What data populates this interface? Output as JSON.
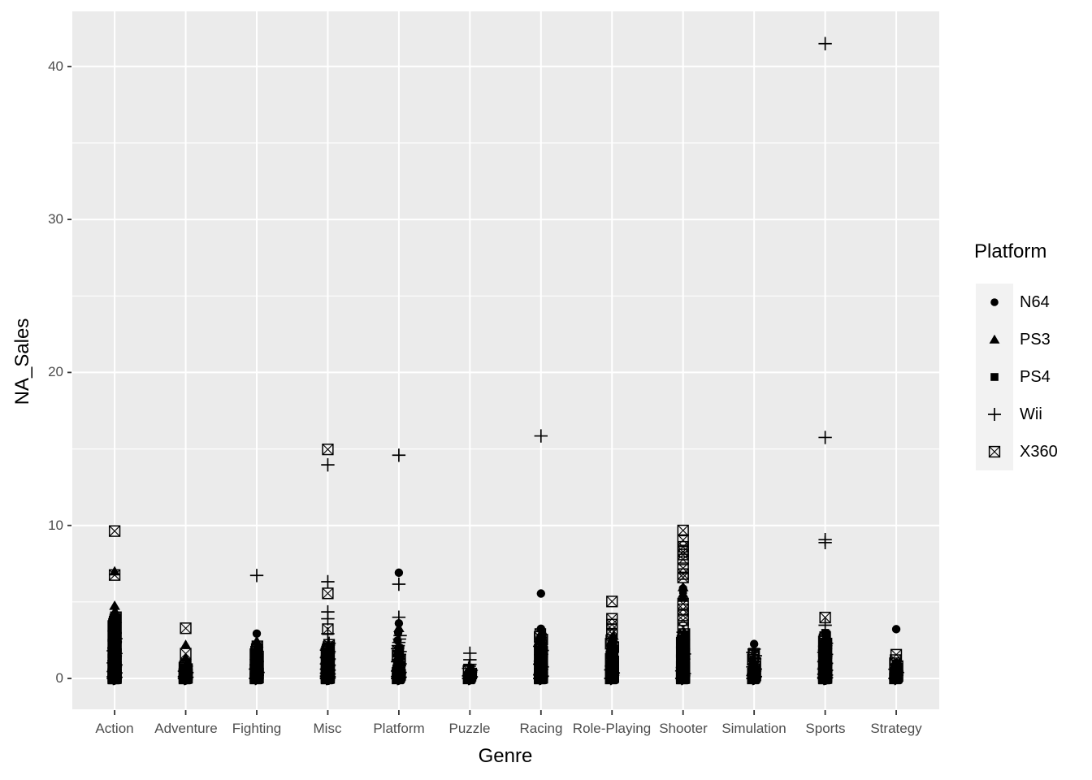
{
  "figure": {
    "background": "#FFFFFF"
  },
  "chart_data": {
    "type": "scatter",
    "title": "",
    "xlabel": "Genre",
    "ylabel": "NA_Sales",
    "x_categories": [
      "Action",
      "Adventure",
      "Fighting",
      "Misc",
      "Platform",
      "Puzzle",
      "Racing",
      "Role-Playing",
      "Shooter",
      "Simulation",
      "Sports",
      "Strategy"
    ],
    "y_tick_labels": [
      "0",
      "10",
      "20",
      "30",
      "40"
    ],
    "y_ticks": [
      0,
      10,
      20,
      30,
      40
    ],
    "y_minor_ticks": [
      5,
      15,
      25,
      35
    ],
    "ylim": [
      -2.07,
      43.6
    ],
    "grid": true,
    "legend_position": "right",
    "colors": {
      "panel_bg": "#EBEBEB",
      "gridline": "#FFFFFF",
      "axis_text": "#4D4D4D",
      "tick_mark": "#333333",
      "point": "#000000",
      "legend_key_bg": "#F2F2F2",
      "title_text": "#000000"
    },
    "legend": {
      "title": "Platform",
      "entries": [
        {
          "label": "N64",
          "shape": "circle"
        },
        {
          "label": "PS3",
          "shape": "triangle"
        },
        {
          "label": "PS4",
          "shape": "square"
        },
        {
          "label": "Wii",
          "shape": "plus"
        },
        {
          "label": "X360",
          "shape": "boxed-x"
        }
      ]
    },
    "notable_points": [
      {
        "genre": "Action",
        "platform": "X360",
        "value": 9.63
      },
      {
        "genre": "Action",
        "platform": "PS3",
        "value": 7.01
      },
      {
        "genre": "Action",
        "platform": "X360",
        "value": 6.76
      },
      {
        "genre": "Action",
        "platform": "PS3",
        "value": 4.76
      },
      {
        "genre": "Action",
        "platform": "PS3",
        "value": 4.35
      },
      {
        "genre": "Action",
        "platform": "N64",
        "value": 4.1
      },
      {
        "genre": "Adventure",
        "platform": "X360",
        "value": 3.28
      },
      {
        "genre": "Adventure",
        "platform": "PS3",
        "value": 2.2
      },
      {
        "genre": "Adventure",
        "platform": "X360",
        "value": 1.62
      },
      {
        "genre": "Adventure",
        "platform": "PS3",
        "value": 1.35
      },
      {
        "genre": "Fighting",
        "platform": "Wii",
        "value": 6.73
      },
      {
        "genre": "Fighting",
        "platform": "N64",
        "value": 2.93
      },
      {
        "genre": "Fighting",
        "platform": "PS3",
        "value": 2.45
      },
      {
        "genre": "Misc",
        "platform": "X360",
        "value": 14.97
      },
      {
        "genre": "Misc",
        "platform": "Wii",
        "value": 13.96
      },
      {
        "genre": "Misc",
        "platform": "Wii",
        "value": 6.32
      },
      {
        "genre": "Misc",
        "platform": "X360",
        "value": 5.56
      },
      {
        "genre": "Misc",
        "platform": "Wii",
        "value": 4.35
      },
      {
        "genre": "Misc",
        "platform": "Wii",
        "value": 3.9
      },
      {
        "genre": "Misc",
        "platform": "X360",
        "value": 3.22
      },
      {
        "genre": "Misc",
        "platform": "Wii",
        "value": 2.92
      },
      {
        "genre": "Platform",
        "platform": "Wii",
        "value": 14.59
      },
      {
        "genre": "Platform",
        "platform": "N64",
        "value": 6.91
      },
      {
        "genre": "Platform",
        "platform": "Wii",
        "value": 6.16
      },
      {
        "genre": "Platform",
        "platform": "Wii",
        "value": 4.0
      },
      {
        "genre": "Platform",
        "platform": "N64",
        "value": 3.6
      },
      {
        "genre": "Platform",
        "platform": "PS3",
        "value": 3.3
      },
      {
        "genre": "Puzzle",
        "platform": "Wii",
        "value": 1.65
      },
      {
        "genre": "Puzzle",
        "platform": "Wii",
        "value": 1.22
      },
      {
        "genre": "Puzzle",
        "platform": "Wii",
        "value": 0.92
      },
      {
        "genre": "Racing",
        "platform": "Wii",
        "value": 15.85
      },
      {
        "genre": "Racing",
        "platform": "N64",
        "value": 5.55
      },
      {
        "genre": "Racing",
        "platform": "N64",
        "value": 3.25
      },
      {
        "genre": "Role-Playing",
        "platform": "X360",
        "value": 5.03
      },
      {
        "genre": "Role-Playing",
        "platform": "X360",
        "value": 3.9
      },
      {
        "genre": "Role-Playing",
        "platform": "X360",
        "value": 3.52
      },
      {
        "genre": "Role-Playing",
        "platform": "X360",
        "value": 3.2
      },
      {
        "genre": "Role-Playing",
        "platform": "X360",
        "value": 2.92
      },
      {
        "genre": "Role-Playing",
        "platform": "PS4",
        "value": 2.05
      },
      {
        "genre": "Role-Playing",
        "platform": "PS4",
        "value": 1.72
      },
      {
        "genre": "Shooter",
        "platform": "X360",
        "value": 9.67
      },
      {
        "genre": "Shooter",
        "platform": "X360",
        "value": 9.04
      },
      {
        "genre": "Shooter",
        "platform": "X360",
        "value": 8.6
      },
      {
        "genre": "Shooter",
        "platform": "X360",
        "value": 8.28
      },
      {
        "genre": "Shooter",
        "platform": "X360",
        "value": 8.1
      },
      {
        "genre": "Shooter",
        "platform": "X360",
        "value": 7.78
      },
      {
        "genre": "Shooter",
        "platform": "X360",
        "value": 7.2
      },
      {
        "genre": "Shooter",
        "platform": "X360",
        "value": 6.82
      },
      {
        "genre": "Shooter",
        "platform": "X360",
        "value": 6.6
      },
      {
        "genre": "Shooter",
        "platform": "PS3",
        "value": 5.98
      },
      {
        "genre": "Shooter",
        "platform": "N64",
        "value": 5.87
      },
      {
        "genre": "Shooter",
        "platform": "PS4",
        "value": 5.77
      },
      {
        "genre": "Shooter",
        "platform": "PS3",
        "value": 5.54
      },
      {
        "genre": "Shooter",
        "platform": "PS3",
        "value": 5.28
      },
      {
        "genre": "Shooter",
        "platform": "X360",
        "value": 4.88
      },
      {
        "genre": "Shooter",
        "platform": "X360",
        "value": 4.52
      },
      {
        "genre": "Shooter",
        "platform": "X360",
        "value": 4.12
      },
      {
        "genre": "Shooter",
        "platform": "X360",
        "value": 3.8
      },
      {
        "genre": "Shooter",
        "platform": "X360",
        "value": 3.32
      },
      {
        "genre": "Shooter",
        "platform": "Wii",
        "value": 3.02
      },
      {
        "genre": "Simulation",
        "platform": "N64",
        "value": 2.25
      },
      {
        "genre": "Simulation",
        "platform": "Wii",
        "value": 1.92
      },
      {
        "genre": "Simulation",
        "platform": "X360",
        "value": 1.62
      },
      {
        "genre": "Sports",
        "platform": "Wii",
        "value": 41.49
      },
      {
        "genre": "Sports",
        "platform": "Wii",
        "value": 15.75
      },
      {
        "genre": "Sports",
        "platform": "Wii",
        "value": 9.07
      },
      {
        "genre": "Sports",
        "platform": "Wii",
        "value": 8.88
      },
      {
        "genre": "Sports",
        "platform": "X360",
        "value": 3.98
      },
      {
        "genre": "Sports",
        "platform": "Wii",
        "value": 3.48
      },
      {
        "genre": "Sports",
        "platform": "PS4",
        "value": 2.98
      },
      {
        "genre": "Strategy",
        "platform": "N64",
        "value": 3.22
      },
      {
        "genre": "Strategy",
        "platform": "X360",
        "value": 1.55
      },
      {
        "genre": "Strategy",
        "platform": "N64",
        "value": 1.02
      }
    ],
    "dense_clusters": [
      {
        "genre": "Action",
        "platform": "PS3",
        "min": 0,
        "max": 4.3,
        "count": 60
      },
      {
        "genre": "Action",
        "platform": "X360",
        "min": 0,
        "max": 4.0,
        "count": 55
      },
      {
        "genre": "Action",
        "platform": "PS4",
        "min": 0,
        "max": 3.8,
        "count": 30
      },
      {
        "genre": "Action",
        "platform": "Wii",
        "min": 0,
        "max": 2.6,
        "count": 25
      },
      {
        "genre": "Action",
        "platform": "N64",
        "min": 0,
        "max": 2.0,
        "count": 10
      },
      {
        "genre": "Adventure",
        "platform": "PS3",
        "min": 0,
        "max": 1.0,
        "count": 25
      },
      {
        "genre": "Adventure",
        "platform": "X360",
        "min": 0,
        "max": 0.9,
        "count": 18
      },
      {
        "genre": "Adventure",
        "platform": "Wii",
        "min": 0,
        "max": 0.8,
        "count": 14
      },
      {
        "genre": "Adventure",
        "platform": "PS4",
        "min": 0,
        "max": 0.8,
        "count": 10
      },
      {
        "genre": "Adventure",
        "platform": "N64",
        "min": 0,
        "max": 0.4,
        "count": 3
      },
      {
        "genre": "Fighting",
        "platform": "PS3",
        "min": 0,
        "max": 2.3,
        "count": 30
      },
      {
        "genre": "Fighting",
        "platform": "X360",
        "min": 0,
        "max": 2.1,
        "count": 24
      },
      {
        "genre": "Fighting",
        "platform": "PS4",
        "min": 0,
        "max": 1.6,
        "count": 12
      },
      {
        "genre": "Fighting",
        "platform": "Wii",
        "min": 0,
        "max": 1.2,
        "count": 8
      },
      {
        "genre": "Fighting",
        "platform": "N64",
        "min": 0,
        "max": 1.1,
        "count": 5
      },
      {
        "genre": "Misc",
        "platform": "Wii",
        "min": 0,
        "max": 2.3,
        "count": 40
      },
      {
        "genre": "Misc",
        "platform": "X360",
        "min": 0,
        "max": 2.2,
        "count": 30
      },
      {
        "genre": "Misc",
        "platform": "PS3",
        "min": 0,
        "max": 2.0,
        "count": 25
      },
      {
        "genre": "Misc",
        "platform": "PS4",
        "min": 0,
        "max": 1.2,
        "count": 10
      },
      {
        "genre": "Misc",
        "platform": "N64",
        "min": 0,
        "max": 1.5,
        "count": 8
      },
      {
        "genre": "Platform",
        "platform": "Wii",
        "min": 0,
        "max": 2.8,
        "count": 25
      },
      {
        "genre": "Platform",
        "platform": "PS3",
        "min": 0,
        "max": 2.2,
        "count": 18
      },
      {
        "genre": "Platform",
        "platform": "X360",
        "min": 0,
        "max": 1.8,
        "count": 12
      },
      {
        "genre": "Platform",
        "platform": "PS4",
        "min": 0,
        "max": 1.4,
        "count": 8
      },
      {
        "genre": "Platform",
        "platform": "N64",
        "min": 0,
        "max": 3.0,
        "count": 12
      },
      {
        "genre": "Puzzle",
        "platform": "Wii",
        "min": 0,
        "max": 0.8,
        "count": 12
      },
      {
        "genre": "Puzzle",
        "platform": "X360",
        "min": 0,
        "max": 0.5,
        "count": 6
      },
      {
        "genre": "Puzzle",
        "platform": "PS3",
        "min": 0,
        "max": 0.4,
        "count": 5
      },
      {
        "genre": "Puzzle",
        "platform": "N64",
        "min": 0,
        "max": 0.6,
        "count": 4
      },
      {
        "genre": "Puzzle",
        "platform": "PS4",
        "min": 0,
        "max": 0.2,
        "count": 2
      },
      {
        "genre": "Racing",
        "platform": "PS3",
        "min": 0,
        "max": 3.1,
        "count": 40
      },
      {
        "genre": "Racing",
        "platform": "X360",
        "min": 0,
        "max": 2.9,
        "count": 32
      },
      {
        "genre": "Racing",
        "platform": "Wii",
        "min": 0,
        "max": 2.1,
        "count": 16
      },
      {
        "genre": "Racing",
        "platform": "PS4",
        "min": 0,
        "max": 1.9,
        "count": 12
      },
      {
        "genre": "Racing",
        "platform": "N64",
        "min": 0,
        "max": 2.0,
        "count": 8
      },
      {
        "genre": "Role-Playing",
        "platform": "PS3",
        "min": 0,
        "max": 2.8,
        "count": 45
      },
      {
        "genre": "Role-Playing",
        "platform": "X360",
        "min": 0,
        "max": 2.5,
        "count": 22
      },
      {
        "genre": "Role-Playing",
        "platform": "PS4",
        "min": 0,
        "max": 1.9,
        "count": 20
      },
      {
        "genre": "Role-Playing",
        "platform": "Wii",
        "min": 0,
        "max": 1.1,
        "count": 8
      },
      {
        "genre": "Role-Playing",
        "platform": "N64",
        "min": 0,
        "max": 1.4,
        "count": 6
      },
      {
        "genre": "Shooter",
        "platform": "PS3",
        "min": 0,
        "max": 3.0,
        "count": 50
      },
      {
        "genre": "Shooter",
        "platform": "X360",
        "min": 0,
        "max": 2.9,
        "count": 40
      },
      {
        "genre": "Shooter",
        "platform": "PS4",
        "min": 0,
        "max": 2.8,
        "count": 25
      },
      {
        "genre": "Shooter",
        "platform": "Wii",
        "min": 0,
        "max": 1.6,
        "count": 10
      },
      {
        "genre": "Shooter",
        "platform": "N64",
        "min": 0,
        "max": 1.9,
        "count": 5
      },
      {
        "genre": "Simulation",
        "platform": "Wii",
        "min": 0,
        "max": 1.7,
        "count": 16
      },
      {
        "genre": "Simulation",
        "platform": "X360",
        "min": 0,
        "max": 1.5,
        "count": 12
      },
      {
        "genre": "Simulation",
        "platform": "PS3",
        "min": 0,
        "max": 1.2,
        "count": 12
      },
      {
        "genre": "Simulation",
        "platform": "PS4",
        "min": 0,
        "max": 0.6,
        "count": 5
      },
      {
        "genre": "Simulation",
        "platform": "N64",
        "min": 0,
        "max": 0.5,
        "count": 2
      },
      {
        "genre": "Sports",
        "platform": "PS3",
        "min": 0,
        "max": 2.8,
        "count": 50
      },
      {
        "genre": "Sports",
        "platform": "X360",
        "min": 0,
        "max": 2.7,
        "count": 38
      },
      {
        "genre": "Sports",
        "platform": "Wii",
        "min": 0,
        "max": 2.3,
        "count": 30
      },
      {
        "genre": "Sports",
        "platform": "PS4",
        "min": 0,
        "max": 2.9,
        "count": 20
      },
      {
        "genre": "Sports",
        "platform": "N64",
        "min": 0,
        "max": 1.7,
        "count": 10
      },
      {
        "genre": "Strategy",
        "platform": "X360",
        "min": 0,
        "max": 1.2,
        "count": 12
      },
      {
        "genre": "Strategy",
        "platform": "PS3",
        "min": 0,
        "max": 0.9,
        "count": 12
      },
      {
        "genre": "Strategy",
        "platform": "Wii",
        "min": 0,
        "max": 0.6,
        "count": 6
      },
      {
        "genre": "Strategy",
        "platform": "PS4",
        "min": 0,
        "max": 0.5,
        "count": 5
      },
      {
        "genre": "Strategy",
        "platform": "N64",
        "min": 0,
        "max": 0.7,
        "count": 3
      }
    ]
  }
}
